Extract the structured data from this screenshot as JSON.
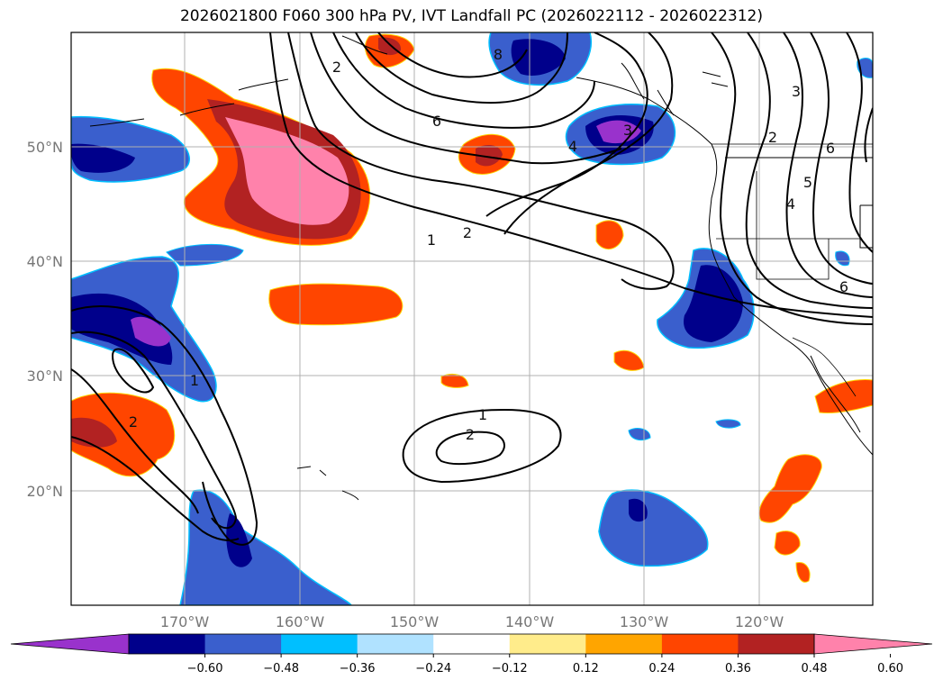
{
  "title": "2026021800 F060 300 hPa PV, IVT Landfall PC (2026022112 - 2026022312)",
  "lat_labels": [
    "50°N",
    "40°N",
    "30°N",
    "20°N"
  ],
  "lon_labels": [
    "170°W",
    "160°W",
    "150°W",
    "140°W",
    "130°W",
    "120°W"
  ],
  "contour_labels": [
    "8",
    "6",
    "3",
    "4",
    "2",
    "1",
    "2",
    "1",
    "2",
    "3",
    "2",
    "4",
    "5",
    "6",
    "6",
    "1",
    "2"
  ],
  "colorbar": {
    "tick_labels": [
      "−0.60",
      "−0.48",
      "−0.36",
      "−0.24",
      "−0.12",
      "0.12",
      "0.24",
      "0.36",
      "0.48",
      "0.60"
    ],
    "colors": [
      "#9932cc",
      "#00008b",
      "#3a5fcd",
      "#00bfff",
      "#b0e2ff",
      "#ffffff",
      "#ffec8b",
      "#ffa500",
      "#ff4500",
      "#b22222",
      "#ff82ab"
    ]
  },
  "colors": {
    "ocean": "#ffffff",
    "grid": "#b0b0b0",
    "contour": "#000000"
  }
}
